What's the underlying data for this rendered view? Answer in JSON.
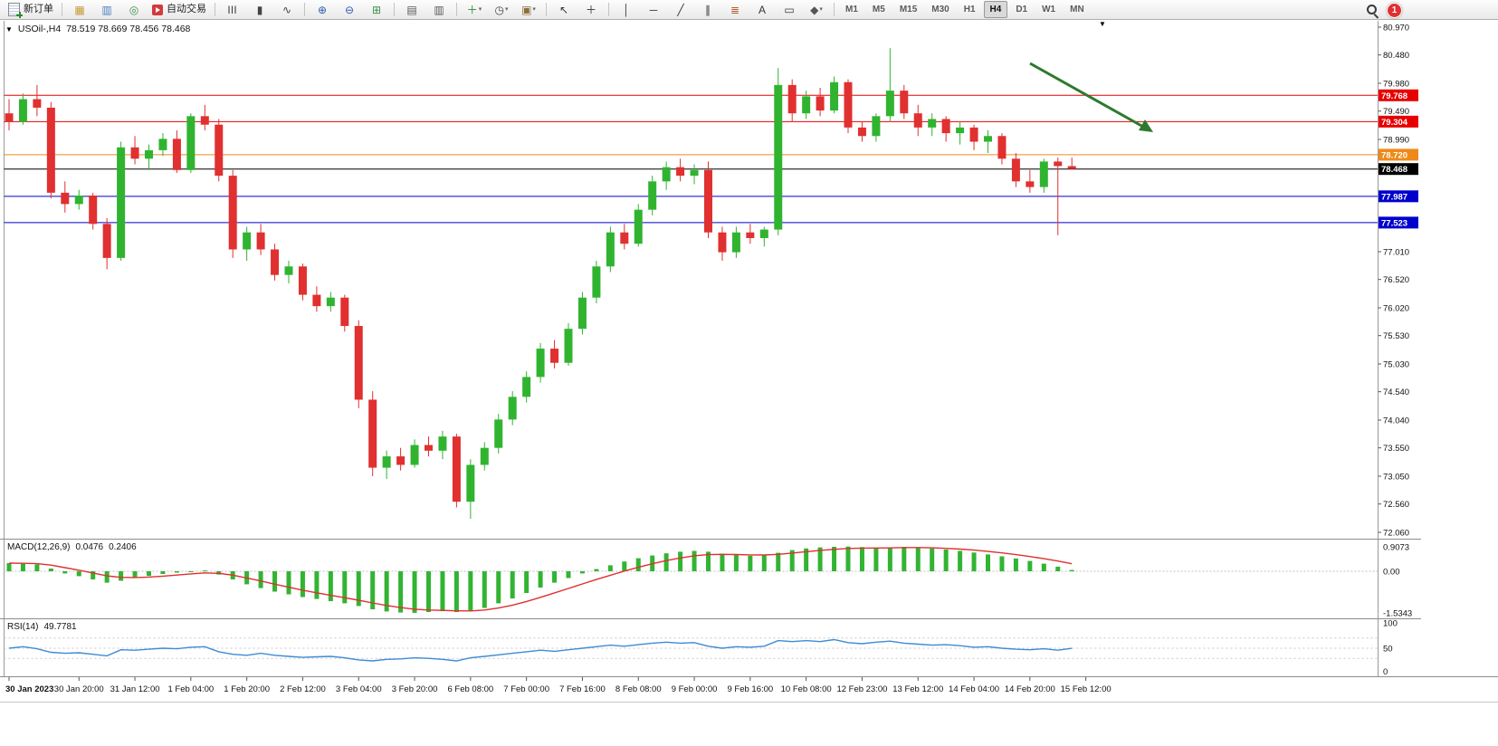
{
  "toolbar": {
    "new_order_label": "新订单",
    "autotrading_label": "自动交易",
    "left_icons": [
      {
        "name": "market-watch-icon",
        "glyph": "▦",
        "color": "#c79a3b"
      },
      {
        "name": "data-window-icon",
        "glyph": "▥",
        "color": "#4a7ebb"
      },
      {
        "name": "navigator-icon",
        "glyph": "◎",
        "color": "#3f8f4a"
      }
    ],
    "chart_icons": [
      {
        "name": "bar-chart-icon",
        "glyph": "|||",
        "color": "#444444"
      },
      {
        "name": "candlestick-chart-icon",
        "glyph": "▮",
        "color": "#444444"
      },
      {
        "name": "line-chart-icon",
        "glyph": "∿",
        "color": "#444444"
      },
      {
        "name": "sep"
      },
      {
        "name": "zoom-in-icon",
        "glyph": "⊕",
        "color": "#2a5db0"
      },
      {
        "name": "zoom-out-icon",
        "glyph": "⊖",
        "color": "#2a5db0"
      },
      {
        "name": "tile-windows-icon",
        "glyph": "⊞",
        "color": "#3f8f4a"
      },
      {
        "name": "sep"
      },
      {
        "name": "arrange-horizontal-icon",
        "glyph": "▤",
        "color": "#555555"
      },
      {
        "name": "arrange-vertical-icon",
        "glyph": "▥",
        "color": "#555555"
      },
      {
        "name": "sep"
      },
      {
        "name": "new-chart-icon",
        "glyph": "＋",
        "color": "#2e8b2e",
        "caret": true
      },
      {
        "name": "period-icon",
        "glyph": "◷",
        "color": "#444444",
        "caret": true
      },
      {
        "name": "template-icon",
        "glyph": "▣",
        "color": "#8a6d3b",
        "caret": true
      }
    ],
    "draw_icons": [
      {
        "name": "cursor-icon",
        "glyph": "↖",
        "color": "#333333"
      },
      {
        "name": "crosshair-icon",
        "glyph": "＋",
        "color": "#333333"
      },
      {
        "name": "sep"
      },
      {
        "name": "vertical-line-icon",
        "glyph": "│",
        "color": "#333333"
      },
      {
        "name": "horizontal-line-icon",
        "glyph": "─",
        "color": "#333333"
      },
      {
        "name": "trendline-icon",
        "glyph": "╱",
        "color": "#333333"
      },
      {
        "name": "equidistant-channel-icon",
        "glyph": "∥",
        "color": "#333333"
      },
      {
        "name": "fibonacci-icon",
        "glyph": "≣",
        "color": "#b05c2a"
      },
      {
        "name": "text-icon",
        "glyph": "A",
        "color": "#333333"
      },
      {
        "name": "label-icon",
        "glyph": "▭",
        "color": "#333333"
      },
      {
        "name": "shapes-icon",
        "glyph": "◆",
        "color": "#555555",
        "caret": true
      }
    ],
    "timeframes": [
      "M1",
      "M5",
      "M15",
      "M30",
      "H1",
      "H4",
      "D1",
      "W1",
      "MN"
    ],
    "active_timeframe": "H4",
    "notification_count": "1"
  },
  "glyphs": {
    "down_triangle": "▼"
  },
  "chart": {
    "symbol_period": "USOil-,H4",
    "ohlc_line": "78.519 78.669 78.456 78.468",
    "price_axis_labels": [
      "80.970",
      "80.480",
      "79.980",
      "79.490",
      "78.990",
      "77.010",
      "76.520",
      "76.020",
      "75.530",
      "75.030",
      "74.540",
      "74.040",
      "73.550",
      "73.050",
      "72.560",
      "72.060"
    ],
    "time_axis_labels": [
      {
        "i": 0,
        "label": "30 Jan 2023"
      },
      {
        "i": 5,
        "label": "30 Jan 20:00"
      },
      {
        "i": 9,
        "label": "31 Jan 12:00"
      },
      {
        "i": 13,
        "label": "1 Feb 04:00"
      },
      {
        "i": 17,
        "label": "1 Feb 20:00"
      },
      {
        "i": 21,
        "label": "2 Feb 12:00"
      },
      {
        "i": 25,
        "label": "3 Feb 04:00"
      },
      {
        "i": 29,
        "label": "3 Feb 20:00"
      },
      {
        "i": 33,
        "label": "6 Feb 08:00"
      },
      {
        "i": 37,
        "label": "7 Feb 00:00"
      },
      {
        "i": 41,
        "label": "7 Feb 16:00"
      },
      {
        "i": 45,
        "label": "8 Feb 08:00"
      },
      {
        "i": 49,
        "label": "9 Feb 00:00"
      },
      {
        "i": 53,
        "label": "9 Feb 16:00"
      },
      {
        "i": 57,
        "label": "10 Feb 08:00"
      },
      {
        "i": 61,
        "label": "12 Feb 23:00"
      },
      {
        "i": 65,
        "label": "13 Feb 12:00"
      },
      {
        "i": 69,
        "label": "14 Feb 04:00"
      },
      {
        "i": 73,
        "label": "14 Feb 20:00"
      },
      {
        "i": 77,
        "label": "15 Feb 12:00"
      }
    ],
    "colors": {
      "bull": "#30b430",
      "bear": "#e03030",
      "macd_hist": "#32b432",
      "macd_signal": "#e03030",
      "rsi_line": "#3d8bd4",
      "arrow": "#2d7a2d"
    }
  },
  "indicators": {
    "macd": {
      "name": "MACD(12,26,9)",
      "value_main": "0.0476",
      "value_signal": "0.2406",
      "axis_labels": [
        "0.9073",
        "0.00",
        "-1.5343"
      ]
    },
    "rsi": {
      "name": "RSI(14)",
      "value": "49.7781",
      "axis_labels": [
        "100",
        "50",
        "0"
      ]
    }
  },
  "chart_data": [
    {
      "type": "candlestick",
      "title": "USOil-,H4",
      "ylim": [
        72.06,
        80.97
      ],
      "current_price": 78.468,
      "levels": [
        {
          "price": 79.768,
          "color": "#e80000"
        },
        {
          "price": 79.304,
          "color": "#e80000"
        },
        {
          "price": 78.72,
          "color": "#ef8918"
        },
        {
          "price": 78.468,
          "color": "#000000"
        },
        {
          "price": 77.987,
          "color": "#0000cd"
        },
        {
          "price": 77.523,
          "color": "#0000cd"
        }
      ],
      "ohlc": [
        [
          79.45,
          79.7,
          79.15,
          79.3
        ],
        [
          79.3,
          79.8,
          79.25,
          79.7
        ],
        [
          79.7,
          79.95,
          79.4,
          79.55
        ],
        [
          79.55,
          79.65,
          77.95,
          78.05
        ],
        [
          78.05,
          78.25,
          77.7,
          77.85
        ],
        [
          77.85,
          78.1,
          77.75,
          78.0
        ],
        [
          78.0,
          78.05,
          77.4,
          77.5
        ],
        [
          77.5,
          77.6,
          76.7,
          76.9
        ],
        [
          76.9,
          78.95,
          76.85,
          78.85
        ],
        [
          78.85,
          79.05,
          78.55,
          78.65
        ],
        [
          78.65,
          78.9,
          78.45,
          78.8
        ],
        [
          78.8,
          79.1,
          78.7,
          79.0
        ],
        [
          79.0,
          79.15,
          78.4,
          78.45
        ],
        [
          78.45,
          79.45,
          78.4,
          79.4
        ],
        [
          79.4,
          79.6,
          79.15,
          79.25
        ],
        [
          79.25,
          79.35,
          78.25,
          78.35
        ],
        [
          78.35,
          78.45,
          76.9,
          77.05
        ],
        [
          77.05,
          77.45,
          76.85,
          77.35
        ],
        [
          77.35,
          77.5,
          76.95,
          77.05
        ],
        [
          77.05,
          77.15,
          76.5,
          76.6
        ],
        [
          76.6,
          76.85,
          76.45,
          76.75
        ],
        [
          76.75,
          76.8,
          76.15,
          76.25
        ],
        [
          76.25,
          76.4,
          75.95,
          76.05
        ],
        [
          76.05,
          76.3,
          75.95,
          76.2
        ],
        [
          76.2,
          76.25,
          75.6,
          75.7
        ],
        [
          75.7,
          75.8,
          74.25,
          74.4
        ],
        [
          74.4,
          74.55,
          73.05,
          73.2
        ],
        [
          73.2,
          73.5,
          73.0,
          73.4
        ],
        [
          73.4,
          73.55,
          73.15,
          73.25
        ],
        [
          73.25,
          73.7,
          73.2,
          73.6
        ],
        [
          73.6,
          73.75,
          73.4,
          73.5
        ],
        [
          73.5,
          73.85,
          73.35,
          73.75
        ],
        [
          73.75,
          73.8,
          72.5,
          72.6
        ],
        [
          72.6,
          73.35,
          72.3,
          73.25
        ],
        [
          73.25,
          73.65,
          73.15,
          73.55
        ],
        [
          73.55,
          74.15,
          73.45,
          74.05
        ],
        [
          74.05,
          74.55,
          73.95,
          74.45
        ],
        [
          74.45,
          74.9,
          74.35,
          74.8
        ],
        [
          74.8,
          75.4,
          74.7,
          75.3
        ],
        [
          75.3,
          75.45,
          74.95,
          75.05
        ],
        [
          75.05,
          75.75,
          75.0,
          75.65
        ],
        [
          75.65,
          76.3,
          75.55,
          76.2
        ],
        [
          76.2,
          76.85,
          76.1,
          76.75
        ],
        [
          76.75,
          77.45,
          76.65,
          77.35
        ],
        [
          77.35,
          77.5,
          77.05,
          77.15
        ],
        [
          77.15,
          77.85,
          77.1,
          77.75
        ],
        [
          77.75,
          78.35,
          77.65,
          78.25
        ],
        [
          78.25,
          78.6,
          78.1,
          78.5
        ],
        [
          78.5,
          78.65,
          78.25,
          78.35
        ],
        [
          78.35,
          78.55,
          78.2,
          78.45
        ],
        [
          78.45,
          78.6,
          77.25,
          77.35
        ],
        [
          77.35,
          77.45,
          76.85,
          77.0
        ],
        [
          77.0,
          77.45,
          76.9,
          77.35
        ],
        [
          77.35,
          77.5,
          77.15,
          77.25
        ],
        [
          77.25,
          77.45,
          77.1,
          77.4
        ],
        [
          77.4,
          80.25,
          77.3,
          79.95
        ],
        [
          79.95,
          80.05,
          79.3,
          79.45
        ],
        [
          79.45,
          79.85,
          79.35,
          79.75
        ],
        [
          79.75,
          79.9,
          79.4,
          79.5
        ],
        [
          79.5,
          80.1,
          79.45,
          80.0
        ],
        [
          80.0,
          80.05,
          79.1,
          79.2
        ],
        [
          79.2,
          79.3,
          78.95,
          79.05
        ],
        [
          79.05,
          79.45,
          78.95,
          79.4
        ],
        [
          79.4,
          80.6,
          79.3,
          79.85
        ],
        [
          79.85,
          79.95,
          79.35,
          79.45
        ],
        [
          79.45,
          79.6,
          79.05,
          79.2
        ],
        [
          79.2,
          79.45,
          79.05,
          79.35
        ],
        [
          79.35,
          79.4,
          78.95,
          79.1
        ],
        [
          79.1,
          79.3,
          78.9,
          79.2
        ],
        [
          79.2,
          79.25,
          78.8,
          78.95
        ],
        [
          78.95,
          79.15,
          78.75,
          79.05
        ],
        [
          79.05,
          79.1,
          78.55,
          78.65
        ],
        [
          78.65,
          78.75,
          78.15,
          78.25
        ],
        [
          78.25,
          78.45,
          78.05,
          78.15
        ],
        [
          78.15,
          78.65,
          78.05,
          78.6
        ],
        [
          78.6,
          78.67,
          77.3,
          78.52
        ],
        [
          78.519,
          78.669,
          78.456,
          78.468
        ]
      ]
    },
    {
      "type": "bar",
      "name": "MACD(12,26,9)",
      "ylim": [
        -1.5343,
        0.9073
      ],
      "current_main": 0.0476,
      "current_signal": 0.2406,
      "values": [
        0.3,
        0.28,
        0.25,
        0.1,
        -0.08,
        -0.18,
        -0.3,
        -0.42,
        -0.35,
        -0.25,
        -0.17,
        -0.1,
        -0.05,
        0.0,
        0.03,
        -0.12,
        -0.3,
        -0.48,
        -0.62,
        -0.75,
        -0.85,
        -0.95,
        -1.02,
        -1.1,
        -1.18,
        -1.28,
        -1.4,
        -1.48,
        -1.52,
        -1.53,
        -1.5,
        -1.47,
        -1.5,
        -1.46,
        -1.35,
        -1.18,
        -1.0,
        -0.8,
        -0.6,
        -0.42,
        -0.25,
        -0.08,
        0.08,
        0.22,
        0.36,
        0.48,
        0.58,
        0.66,
        0.72,
        0.75,
        0.72,
        0.65,
        0.6,
        0.57,
        0.59,
        0.68,
        0.78,
        0.84,
        0.88,
        0.9,
        0.91,
        0.89,
        0.86,
        0.87,
        0.9,
        0.88,
        0.84,
        0.8,
        0.75,
        0.69,
        0.62,
        0.55,
        0.47,
        0.38,
        0.28,
        0.17,
        0.048
      ]
    },
    {
      "type": "line",
      "name": "RSI(14)",
      "ylim": [
        0,
        100
      ],
      "levels": [
        30,
        50,
        70
      ],
      "current": 49.7781,
      "values": [
        50,
        53,
        49,
        42,
        40,
        41,
        38,
        35,
        47,
        46,
        48,
        50,
        49,
        52,
        53,
        43,
        38,
        36,
        40,
        36,
        34,
        32,
        33,
        34,
        31,
        27,
        25,
        28,
        29,
        31,
        30,
        28,
        25,
        31,
        34,
        37,
        40,
        43,
        46,
        44,
        47,
        50,
        53,
        56,
        54,
        57,
        60,
        62,
        60,
        61,
        54,
        50,
        53,
        52,
        54,
        65,
        63,
        65,
        63,
        67,
        61,
        59,
        62,
        64,
        60,
        58,
        56,
        57,
        55,
        52,
        53,
        50,
        48,
        47,
        49,
        46,
        49.78
      ]
    }
  ]
}
